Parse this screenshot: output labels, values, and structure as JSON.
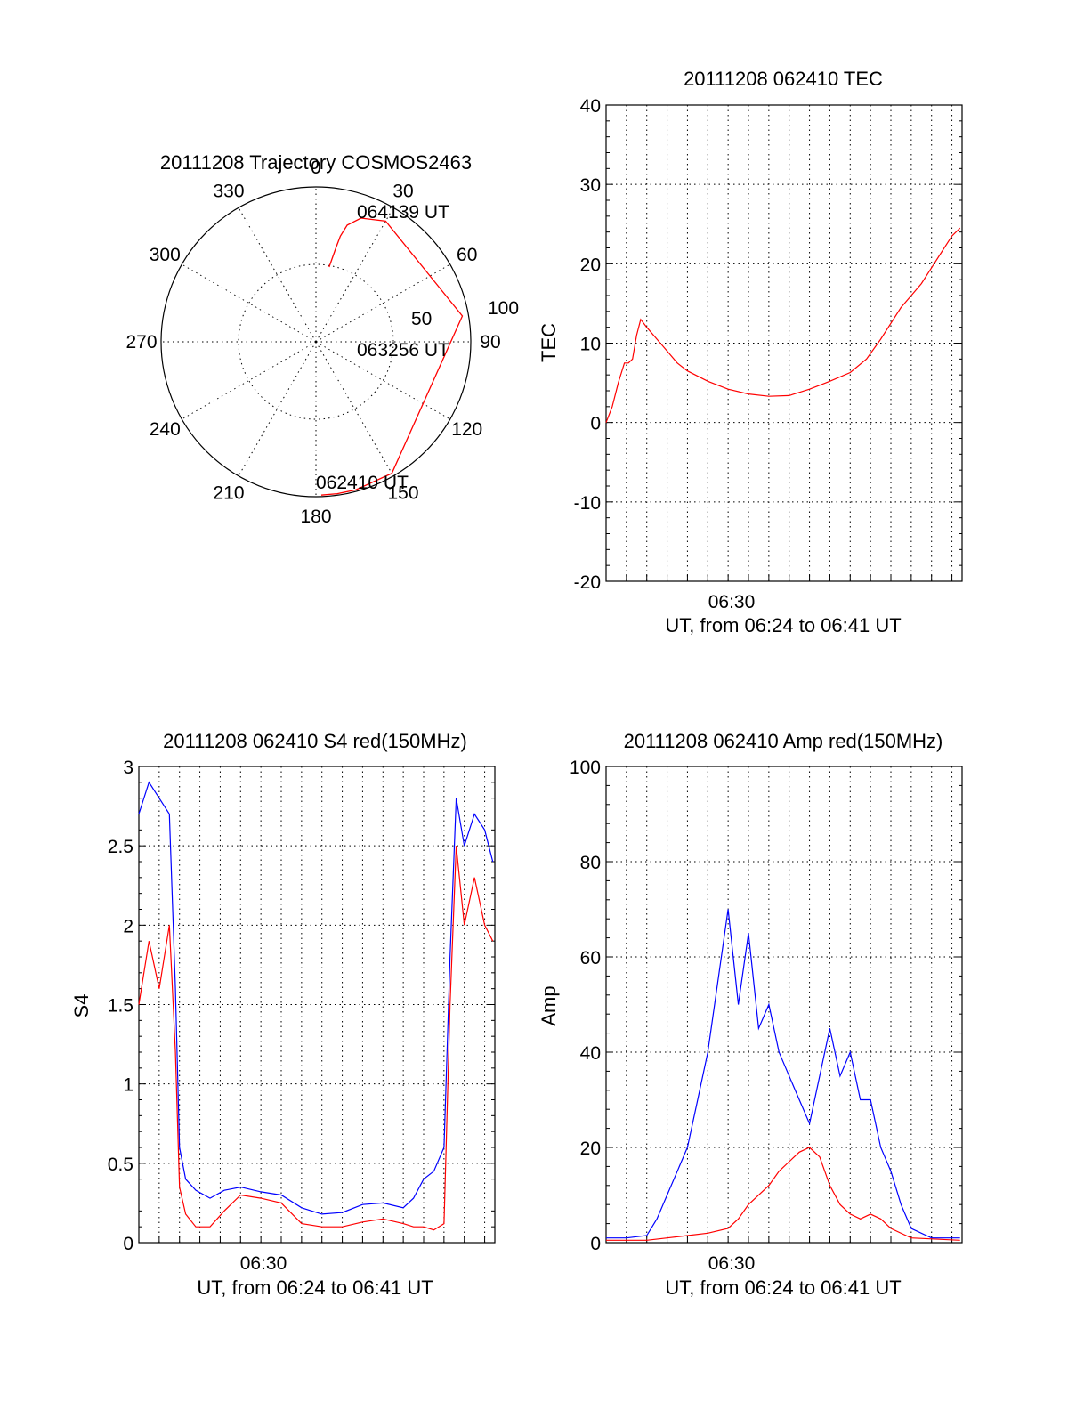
{
  "chart_data": [
    {
      "type": "polar",
      "title": "20111208 Trajectory COSMOS2463",
      "angle_ticks": [
        "0",
        "30",
        "60",
        "90",
        "120",
        "150",
        "180",
        "210",
        "240",
        "270",
        "300",
        "330"
      ],
      "radius_labels": [
        "50",
        "100"
      ],
      "trajectory": {
        "color": "#ff0000",
        "azimuth_deg": [
          10,
          11,
          12,
          13,
          15,
          20,
          30,
          80,
          150,
          165,
          172,
          178
        ],
        "radius": [
          49,
          55,
          62,
          70,
          78,
          85,
          90,
          96,
          98,
          99,
          99,
          99
        ]
      },
      "annotations": [
        "064139 UT",
        "063256 UT",
        "062410 UT"
      ]
    },
    {
      "type": "line",
      "title": "20111208 062410 TEC",
      "ylabel": "TEC",
      "xlabel": "UT, from 06:24 to 06:41 UT",
      "xtick_label": "06:30",
      "xlim_min": [
        0,
        17.5
      ],
      "ylim": [
        -20,
        40
      ],
      "yticks": [
        "40",
        "30",
        "20",
        "10",
        "0",
        "-10",
        "-20"
      ],
      "grid": true,
      "series": [
        {
          "color": "#ff0000",
          "x": [
            0.0,
            0.3,
            0.6,
            0.9,
            1.1,
            1.3,
            1.5,
            1.7,
            2.0,
            2.5,
            3.0,
            3.5,
            4.0,
            5.0,
            6.0,
            7.0,
            8.0,
            9.0,
            10.0,
            11.0,
            12.0,
            12.8,
            13.5,
            14.0,
            14.5,
            15.0,
            15.5,
            16.0,
            16.5,
            17.0,
            17.4
          ],
          "y": [
            0,
            2,
            5,
            7.5,
            7.5,
            8,
            11,
            13,
            12,
            10.5,
            9,
            7.5,
            6.5,
            5.2,
            4.2,
            3.6,
            3.3,
            3.4,
            4.2,
            5.2,
            6.3,
            8,
            10.5,
            12.5,
            14.5,
            16,
            17.5,
            19.5,
            21.5,
            23.5,
            24.5
          ]
        }
      ]
    },
    {
      "type": "line",
      "title": "20111208 062410 S4 red(150MHz)",
      "ylabel": "S4",
      "xlabel": "UT, from 06:24 to 06:41 UT",
      "xtick_label": "06:30",
      "xlim_min": [
        0,
        17.5
      ],
      "ylim": [
        0,
        3
      ],
      "yticks": [
        "3",
        "2.5",
        "2",
        "1.5",
        "1",
        "0.5",
        "0"
      ],
      "grid": true,
      "series": [
        {
          "color": "#0000ff",
          "x": [
            0.0,
            0.5,
            1.0,
            1.5,
            1.8,
            2.0,
            2.3,
            2.8,
            3.5,
            4.2,
            5.0,
            6.0,
            7.0,
            8.0,
            9.0,
            10.0,
            11.0,
            12.0,
            13.0,
            13.5,
            14.0,
            14.5,
            15.0,
            15.3,
            15.6,
            16.0,
            16.5,
            17.0,
            17.4
          ],
          "y": [
            2.7,
            2.9,
            2.8,
            2.7,
            1.6,
            0.6,
            0.4,
            0.33,
            0.28,
            0.33,
            0.35,
            0.32,
            0.3,
            0.22,
            0.18,
            0.19,
            0.24,
            0.25,
            0.22,
            0.28,
            0.4,
            0.45,
            0.6,
            1.8,
            2.8,
            2.5,
            2.7,
            2.6,
            2.4
          ]
        },
        {
          "color": "#ff0000",
          "x": [
            0.0,
            0.5,
            1.0,
            1.5,
            1.8,
            2.0,
            2.3,
            2.8,
            3.5,
            4.2,
            5.0,
            6.0,
            7.0,
            8.0,
            9.0,
            10.0,
            11.0,
            12.0,
            13.0,
            13.5,
            14.0,
            14.5,
            15.0,
            15.3,
            15.6,
            16.0,
            16.5,
            17.0,
            17.4
          ],
          "y": [
            1.5,
            1.9,
            1.6,
            2.0,
            1.2,
            0.35,
            0.18,
            0.1,
            0.1,
            0.2,
            0.3,
            0.28,
            0.25,
            0.12,
            0.1,
            0.1,
            0.13,
            0.15,
            0.12,
            0.1,
            0.1,
            0.08,
            0.12,
            1.5,
            2.5,
            2.0,
            2.3,
            2.0,
            1.9
          ]
        }
      ]
    },
    {
      "type": "line",
      "title": "20111208 062410 Amp red(150MHz)",
      "ylabel": "Amp",
      "xlabel": "UT, from 06:24 to 06:41 UT",
      "xtick_label": "06:30",
      "xlim_min": [
        0,
        17.5
      ],
      "ylim": [
        0,
        100
      ],
      "yticks": [
        "100",
        "80",
        "60",
        "40",
        "20",
        "0"
      ],
      "grid": true,
      "series": [
        {
          "color": "#0000ff",
          "x": [
            0.0,
            1.0,
            2.0,
            2.5,
            3.0,
            3.5,
            4.0,
            4.5,
            5.0,
            5.5,
            6.0,
            6.5,
            7.0,
            7.5,
            8.0,
            8.5,
            9.0,
            9.5,
            10.0,
            10.5,
            11.0,
            11.5,
            12.0,
            12.5,
            13.0,
            13.5,
            14.0,
            14.5,
            15.0,
            16.0,
            17.4
          ],
          "y": [
            1,
            1,
            1.5,
            5,
            10,
            15,
            20,
            30,
            40,
            55,
            70,
            50,
            65,
            45,
            50,
            40,
            35,
            30,
            25,
            35,
            45,
            35,
            40,
            30,
            30,
            20,
            15,
            8,
            3,
            1,
            1
          ]
        },
        {
          "color": "#ff0000",
          "x": [
            0.0,
            2.0,
            3.0,
            4.0,
            5.0,
            6.0,
            6.5,
            7.0,
            7.5,
            8.0,
            8.5,
            9.0,
            9.5,
            10.0,
            10.5,
            11.0,
            11.5,
            12.0,
            12.5,
            13.0,
            13.5,
            14.0,
            15.0,
            17.4
          ],
          "y": [
            0.5,
            0.5,
            1,
            1.5,
            2,
            3,
            5,
            8,
            10,
            12,
            15,
            17,
            19,
            20,
            18,
            12,
            8,
            6,
            5,
            6,
            5,
            3,
            1,
            0.5
          ]
        }
      ]
    }
  ]
}
